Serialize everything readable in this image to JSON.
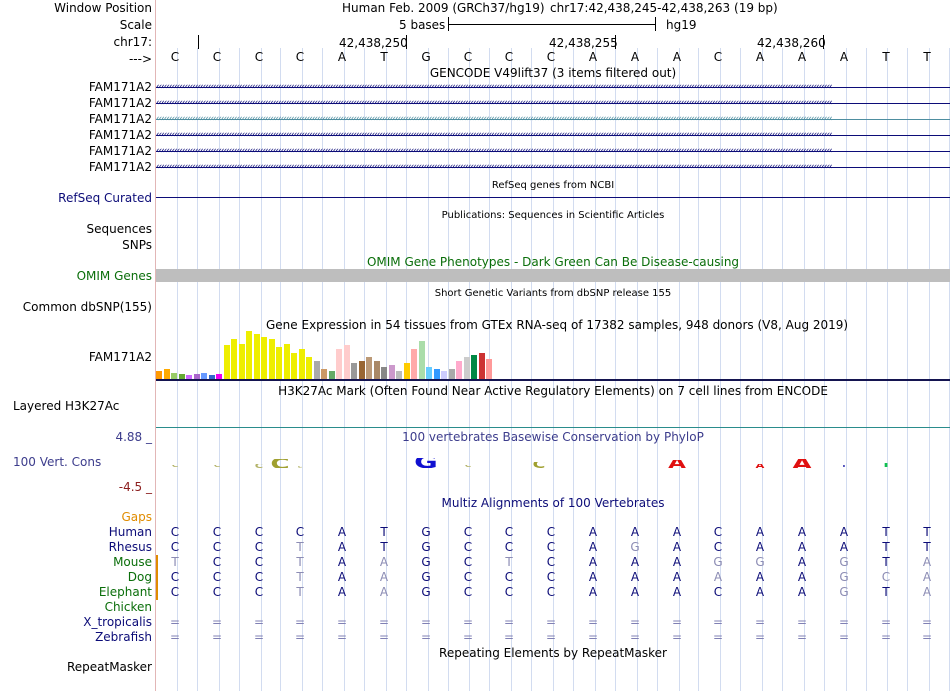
{
  "header": {
    "window_position_label": "Window Position",
    "scale_label": "Scale",
    "chrom_label": "chr17:",
    "strand_label": "--->",
    "assembly": "Human Feb. 2009 (GRCh37/hg19)",
    "position": "chr17:42,438,245-42,438,263 (19 bp)",
    "scale_text": "5 bases",
    "scale_db": "hg19",
    "coords": [
      "42,438,250",
      "42,438,255",
      "42,438,260"
    ]
  },
  "reference_bases": [
    "C",
    "C",
    "C",
    "C",
    "A",
    "T",
    "G",
    "C",
    "C",
    "C",
    "A",
    "A",
    "A",
    "C",
    "A",
    "A",
    "A",
    "T",
    "T"
  ],
  "tracks": {
    "gencode": {
      "title": "GENCODE V49lift37 (3 items filtered out)",
      "labels": [
        "FAM171A2",
        "FAM171A2",
        "FAM171A2",
        "FAM171A2",
        "FAM171A2",
        "FAM171A2"
      ],
      "colors": [
        "#0c0c78",
        "#0c0c78",
        "#4e8ea0",
        "#0c0c78",
        "#0c0c78",
        "#0c0c78"
      ]
    },
    "refseq": {
      "title": "RefSeq genes from NCBI",
      "label": "RefSeq Curated"
    },
    "publications": {
      "title": "Publications: Sequences in Scientific Articles",
      "label": "Sequences"
    },
    "snps_label": "SNPs",
    "omim": {
      "title": "OMIM Gene Phenotypes - Dark Green Can Be Disease-causing",
      "label": "OMIM Genes"
    },
    "dbsnp": {
      "title": "Short Genetic Variants from dbSNP release 155",
      "label": "Common dbSNP(155)"
    },
    "gtex": {
      "title": "Gene Expression in 54 tissues from GTEx RNA-seq of 17382 samples, 948 donors (V8, Aug 2019)",
      "label": "FAM171A2"
    },
    "h3k27ac": {
      "title": "H3K27Ac Mark (Often Found Near Active Regulatory Elements) on 7 cell lines from ENCODE",
      "label": "Layered H3K27Ac"
    },
    "phylop": {
      "title": "100 vertebrates Basewise Conservation by PhyloP",
      "label": "100 Vert. Cons",
      "max": "4.88 _",
      "min": "-4.5 _"
    },
    "multiz": {
      "title": "Multiz Alignments of 100 Vertebrates",
      "gaps_label": "Gaps",
      "species": [
        {
          "name": "Human",
          "bases": [
            "C",
            "C",
            "C",
            "C",
            "A",
            "T",
            "G",
            "C",
            "C",
            "C",
            "A",
            "A",
            "A",
            "C",
            "A",
            "A",
            "A",
            "T",
            "T"
          ]
        },
        {
          "name": "Rhesus",
          "bases": [
            "C",
            "C",
            "C",
            "T",
            "A",
            "T",
            "G",
            "C",
            "C",
            "C",
            "A",
            "G",
            "A",
            "C",
            "A",
            "A",
            "A",
            "T",
            "T"
          ]
        },
        {
          "name": "Mouse",
          "bases": [
            "T",
            "C",
            "C",
            "T",
            "A",
            "A",
            "G",
            "C",
            "T",
            "C",
            "A",
            "A",
            "A",
            "G",
            "G",
            "A",
            "G",
            "T",
            "A"
          ]
        },
        {
          "name": "Dog",
          "bases": [
            "C",
            "C",
            "C",
            "T",
            "A",
            "A",
            "G",
            "C",
            "C",
            "C",
            "A",
            "A",
            "A",
            "A",
            "A",
            "A",
            "G",
            "C",
            "A"
          ]
        },
        {
          "name": "Elephant",
          "bases": [
            "C",
            "C",
            "C",
            "T",
            "A",
            "A",
            "G",
            "C",
            "C",
            "C",
            "A",
            "A",
            "A",
            "C",
            "A",
            "A",
            "G",
            "T",
            "A"
          ]
        },
        {
          "name": "Chicken",
          "bases": []
        },
        {
          "name": "X_tropicalis",
          "bases": [
            "=",
            "=",
            "=",
            "=",
            "=",
            "=",
            "=",
            "=",
            "=",
            "=",
            "=",
            "=",
            "=",
            "=",
            "=",
            "=",
            "=",
            "=",
            "="
          ]
        },
        {
          "name": "Zebrafish",
          "bases": [
            "=",
            "=",
            "=",
            "=",
            "=",
            "=",
            "=",
            "=",
            "=",
            "=",
            "=",
            "=",
            "=",
            "=",
            "=",
            "=",
            "=",
            "=",
            "="
          ]
        }
      ]
    },
    "repeatmasker": {
      "title": "Repeating Elements by RepeatMasker",
      "label": "RepeatMasker"
    }
  }
}
